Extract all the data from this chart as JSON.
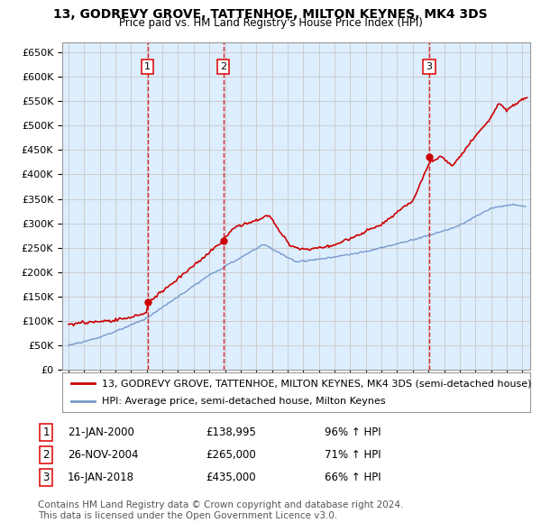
{
  "title": "13, GODREVY GROVE, TATTENHOE, MILTON KEYNES, MK4 3DS",
  "subtitle": "Price paid vs. HM Land Registry's House Price Index (HPI)",
  "legend_red": "13, GODREVY GROVE, TATTENHOE, MILTON KEYNES, MK4 3DS (semi-detached house)",
  "legend_blue": "HPI: Average price, semi-detached house, Milton Keynes",
  "footer1": "Contains HM Land Registry data © Crown copyright and database right 2024.",
  "footer2": "This data is licensed under the Open Government Licence v3.0.",
  "transactions": [
    {
      "num": 1,
      "date": "21-JAN-2000",
      "price": "£138,995",
      "year": 2000.05,
      "price_val": 138995,
      "hpi_pct": "96% ↑ HPI"
    },
    {
      "num": 2,
      "date": "26-NOV-2004",
      "price": "£265,000",
      "year": 2004.9,
      "price_val": 265000,
      "hpi_pct": "71% ↑ HPI"
    },
    {
      "num": 3,
      "date": "16-JAN-2018",
      "price": "£435,000",
      "year": 2018.05,
      "price_val": 435000,
      "hpi_pct": "66% ↑ HPI"
    }
  ],
  "ylim": [
    0,
    670000
  ],
  "yticks": [
    0,
    50000,
    100000,
    150000,
    200000,
    250000,
    300000,
    350000,
    400000,
    450000,
    500000,
    550000,
    600000,
    650000
  ],
  "xlim": [
    1994.6,
    2024.5
  ],
  "red_color": "#cc0000",
  "blue_color": "#7799cc",
  "grid_color": "#cccccc",
  "bg_color": "#ddeeff",
  "vline_color": "#dd0000",
  "title_fontsize": 10,
  "subtitle_fontsize": 8.5,
  "axis_fontsize": 8,
  "legend_fontsize": 8,
  "table_fontsize": 8.5,
  "footer_fontsize": 7.5
}
